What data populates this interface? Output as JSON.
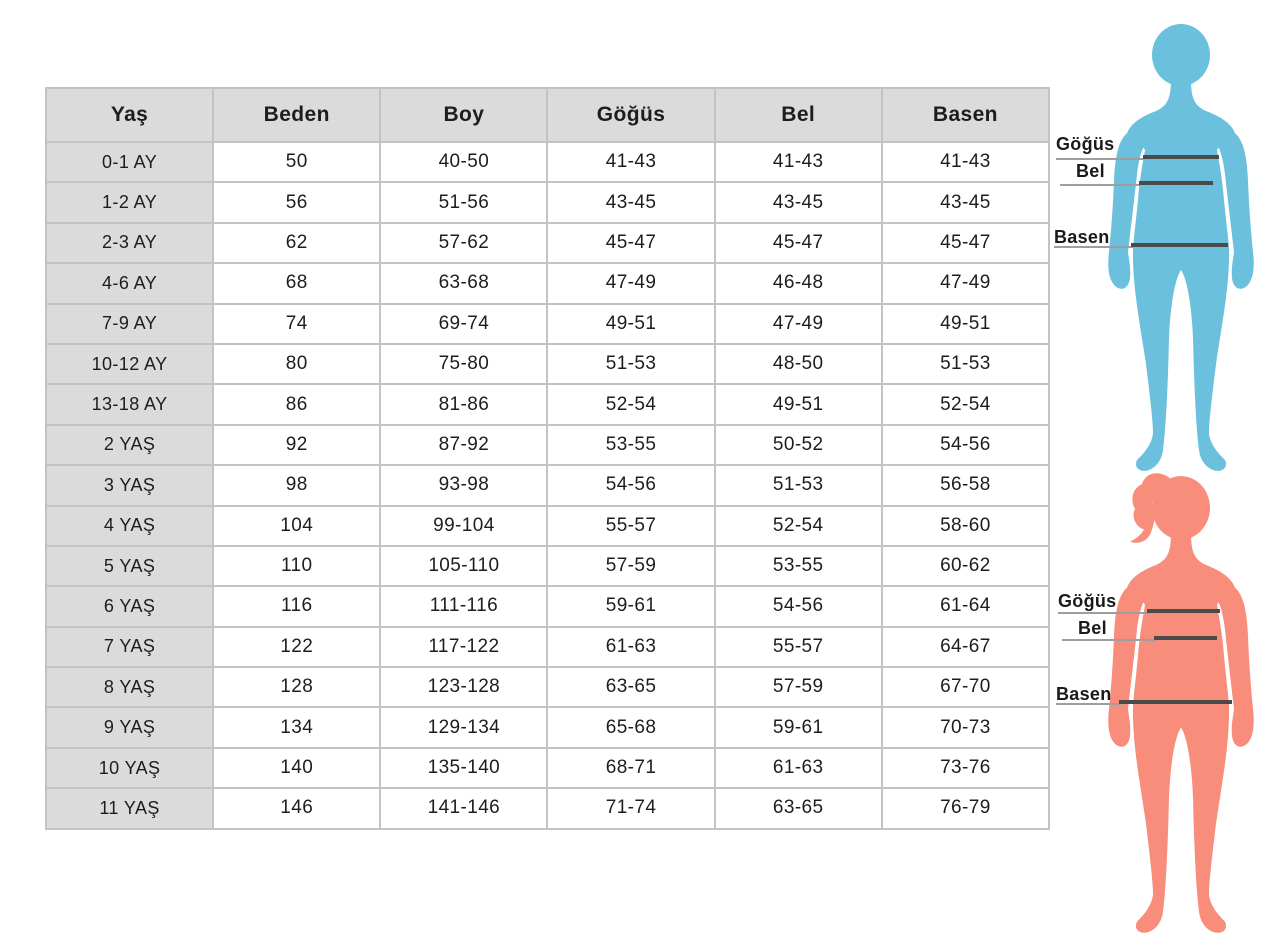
{
  "chart_data": {
    "type": "table",
    "columns": [
      "Yaş",
      "Beden",
      "Boy",
      "Göğüs",
      "Bel",
      "Basen"
    ],
    "rows": [
      [
        "0-1 AY",
        "50",
        "40-50",
        "41-43",
        "41-43",
        "41-43"
      ],
      [
        "1-2 AY",
        "56",
        "51-56",
        "43-45",
        "43-45",
        "43-45"
      ],
      [
        "2-3 AY",
        "62",
        "57-62",
        "45-47",
        "45-47",
        "45-47"
      ],
      [
        "4-6 AY",
        "68",
        "63-68",
        "47-49",
        "46-48",
        "47-49"
      ],
      [
        "7-9 AY",
        "74",
        "69-74",
        "49-51",
        "47-49",
        "49-51"
      ],
      [
        "10-12 AY",
        "80",
        "75-80",
        "51-53",
        "48-50",
        "51-53"
      ],
      [
        "13-18 AY",
        "86",
        "81-86",
        "52-54",
        "49-51",
        "52-54"
      ],
      [
        "2 YAŞ",
        "92",
        "87-92",
        "53-55",
        "50-52",
        "54-56"
      ],
      [
        "3 YAŞ",
        "98",
        "93-98",
        "54-56",
        "51-53",
        "56-58"
      ],
      [
        "4 YAŞ",
        "104",
        "99-104",
        "55-57",
        "52-54",
        "58-60"
      ],
      [
        "5 YAŞ",
        "110",
        "105-110",
        "57-59",
        "53-55",
        "60-62"
      ],
      [
        "6 YAŞ",
        "116",
        "111-116",
        "59-61",
        "54-56",
        "61-64"
      ],
      [
        "7 YAŞ",
        "122",
        "117-122",
        "61-63",
        "55-57",
        "64-67"
      ],
      [
        "8 YAŞ",
        "128",
        "123-128",
        "63-65",
        "57-59",
        "67-70"
      ],
      [
        "9 YAŞ",
        "134",
        "129-134",
        "65-68",
        "59-61",
        "70-73"
      ],
      [
        "10 YAŞ",
        "140",
        "135-140",
        "68-71",
        "61-63",
        "73-76"
      ],
      [
        "11 YAŞ",
        "146",
        "141-146",
        "71-74",
        "63-65",
        "76-79"
      ]
    ]
  },
  "figures": [
    {
      "name": "child-silhouette-blue",
      "color": "#6bc1dd",
      "labels": {
        "chest": "Göğüs",
        "waist": "Bel",
        "hip": "Basen"
      }
    },
    {
      "name": "girl-silhouette-pink",
      "color": "#f78d7a",
      "labels": {
        "chest": "Göğüs",
        "waist": "Bel",
        "hip": "Basen"
      }
    }
  ],
  "colors": {
    "header_bg": "#dbdbdb",
    "border": "#c3c3c3",
    "text": "#1d1d1d",
    "measure_line": "#4a4a4a",
    "leader_line": "#9e9e9e"
  }
}
